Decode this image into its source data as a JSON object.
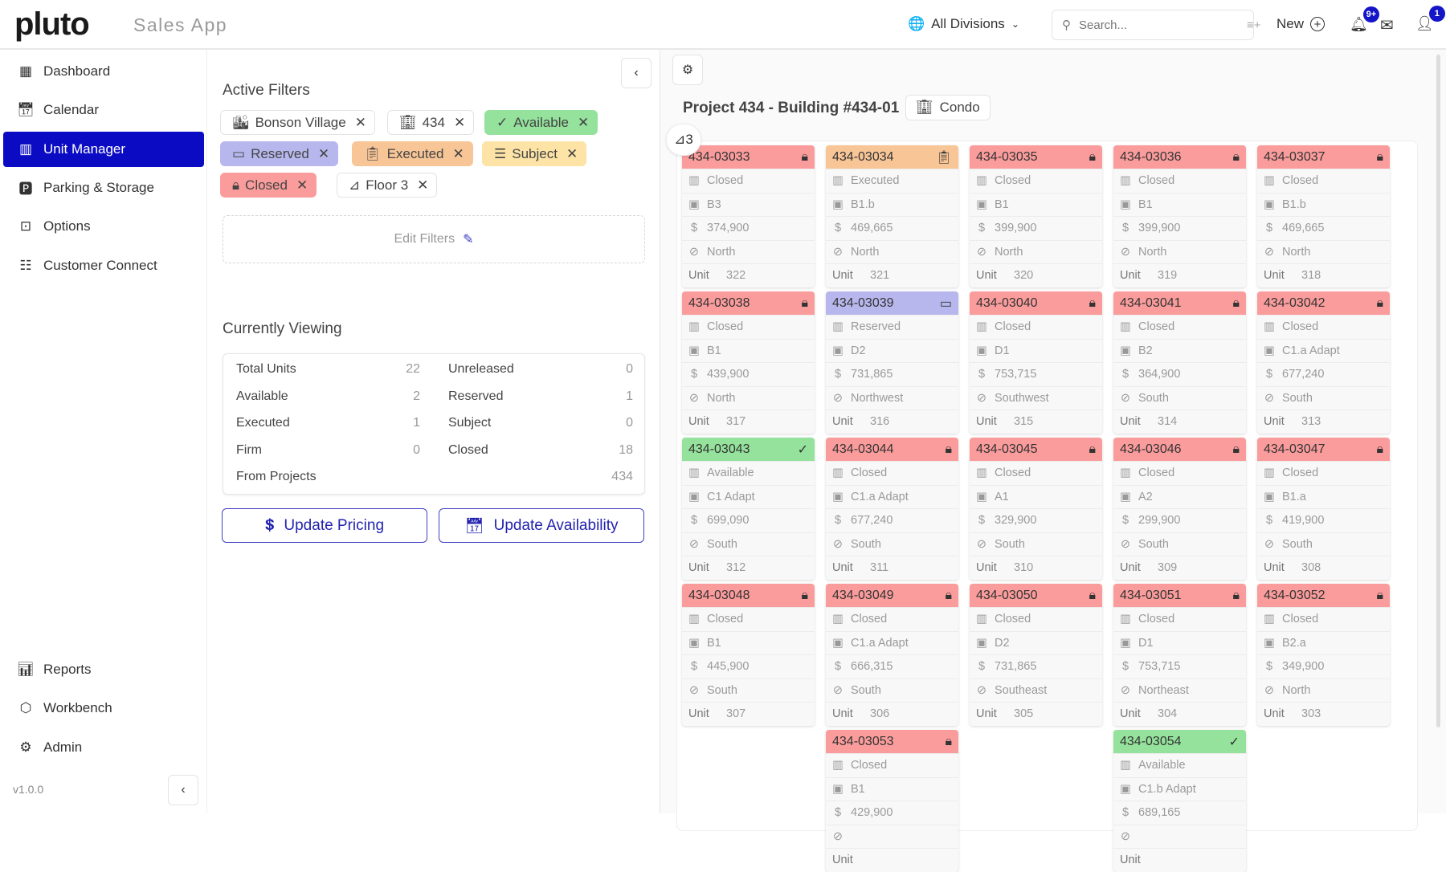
{
  "header": {
    "logo": "pluto",
    "app_name": "Sales App",
    "division": "All Divisions",
    "search_placeholder": "Search...",
    "new_label": "New",
    "notifications_badge": "9+",
    "user_badge": "1"
  },
  "sidebar": {
    "items": [
      {
        "label": "Dashboard",
        "icon": "dashboard-icon"
      },
      {
        "label": "Calendar",
        "icon": "calendar-icon"
      },
      {
        "label": "Unit Manager",
        "icon": "unit-manager-icon",
        "active": true
      },
      {
        "label": "Parking & Storage",
        "icon": "parking-icon"
      },
      {
        "label": "Options",
        "icon": "options-icon"
      },
      {
        "label": "Customer Connect",
        "icon": "customer-icon"
      }
    ],
    "bottom_items": [
      {
        "label": "Reports",
        "icon": "reports-icon"
      },
      {
        "label": "Workbench",
        "icon": "cube-icon"
      },
      {
        "label": "Admin",
        "icon": "gear-icon"
      }
    ],
    "version": "v1.0.0"
  },
  "filters": {
    "title": "Active Filters",
    "chips": [
      {
        "label": "Bonson Village",
        "icon": "buildings-icon",
        "color": "#ffffff"
      },
      {
        "label": "434",
        "icon": "building-icon",
        "color": "#ffffff"
      },
      {
        "label": "Available",
        "icon": "check-icon",
        "color": "#94e29b"
      },
      {
        "label": "Reserved",
        "icon": "card-icon",
        "color": "#b7b7ee"
      },
      {
        "label": "Executed",
        "icon": "clipboard-icon",
        "color": "#f8c596"
      },
      {
        "label": "Subject",
        "icon": "checklist-icon",
        "color": "#fde3a6"
      },
      {
        "label": "Closed",
        "icon": "lock-icon",
        "color": "#fb9c9c"
      },
      {
        "label": "Floor 3",
        "icon": "stairs-icon",
        "color": "#ffffff"
      }
    ],
    "edit_label": "Edit Filters"
  },
  "viewing": {
    "title": "Currently Viewing",
    "left": [
      {
        "label": "Total Units",
        "value": "22"
      },
      {
        "label": "Available",
        "value": "2"
      },
      {
        "label": "Executed",
        "value": "1"
      },
      {
        "label": "Firm",
        "value": "0"
      }
    ],
    "right": [
      {
        "label": "Unreleased",
        "value": "0"
      },
      {
        "label": "Reserved",
        "value": "1"
      },
      {
        "label": "Subject",
        "value": "0"
      },
      {
        "label": "Closed",
        "value": "18"
      }
    ],
    "projects_label": "From Projects",
    "projects_value": "434"
  },
  "actions": {
    "pricing": "Update Pricing",
    "availability": "Update Availability"
  },
  "main": {
    "title": "Project 434 - Building #434-01",
    "type": "Condo",
    "floor": "3",
    "unit_label": "Unit",
    "status_colors": {
      "Closed": "#fb9c9c",
      "Executed": "#f8c596",
      "Reserved": "#b7b7ee",
      "Available": "#94e29b"
    },
    "units": [
      {
        "id": "434-03033",
        "status": "Closed",
        "plan": "B3",
        "price": "374,900",
        "view": "North",
        "unit": "322"
      },
      {
        "id": "434-03034",
        "status": "Executed",
        "plan": "B1.b",
        "price": "469,665",
        "view": "North",
        "unit": "321"
      },
      {
        "id": "434-03035",
        "status": "Closed",
        "plan": "B1",
        "price": "399,900",
        "view": "North",
        "unit": "320"
      },
      {
        "id": "434-03036",
        "status": "Closed",
        "plan": "B1",
        "price": "399,900",
        "view": "North",
        "unit": "319"
      },
      {
        "id": "434-03037",
        "status": "Closed",
        "plan": "B1.b",
        "price": "469,665",
        "view": "North",
        "unit": "318"
      },
      {
        "id": "434-03038",
        "status": "Closed",
        "plan": "B1",
        "price": "439,900",
        "view": "North",
        "unit": "317"
      },
      {
        "id": "434-03039",
        "status": "Reserved",
        "plan": "D2",
        "price": "731,865",
        "view": "Northwest",
        "unit": "316"
      },
      {
        "id": "434-03040",
        "status": "Closed",
        "plan": "D1",
        "price": "753,715",
        "view": "Southwest",
        "unit": "315"
      },
      {
        "id": "434-03041",
        "status": "Closed",
        "plan": "B2",
        "price": "364,900",
        "view": "South",
        "unit": "314"
      },
      {
        "id": "434-03042",
        "status": "Closed",
        "plan": "C1.a Adapt",
        "price": "677,240",
        "view": "South",
        "unit": "313"
      },
      {
        "id": "434-03043",
        "status": "Available",
        "plan": "C1 Adapt",
        "price": "699,090",
        "view": "South",
        "unit": "312"
      },
      {
        "id": "434-03044",
        "status": "Closed",
        "plan": "C1.a Adapt",
        "price": "677,240",
        "view": "South",
        "unit": "311"
      },
      {
        "id": "434-03045",
        "status": "Closed",
        "plan": "A1",
        "price": "329,900",
        "view": "South",
        "unit": "310"
      },
      {
        "id": "434-03046",
        "status": "Closed",
        "plan": "A2",
        "price": "299,900",
        "view": "South",
        "unit": "309"
      },
      {
        "id": "434-03047",
        "status": "Closed",
        "plan": "B1.a",
        "price": "419,900",
        "view": "South",
        "unit": "308"
      },
      {
        "id": "434-03048",
        "status": "Closed",
        "plan": "B1",
        "price": "445,900",
        "view": "South",
        "unit": "307"
      },
      {
        "id": "434-03049",
        "status": "Closed",
        "plan": "C1.a Adapt",
        "price": "666,315",
        "view": "South",
        "unit": "306"
      },
      {
        "id": "434-03050",
        "status": "Closed",
        "plan": "D2",
        "price": "731,865",
        "view": "Southeast",
        "unit": "305"
      },
      {
        "id": "434-03051",
        "status": "Closed",
        "plan": "D1",
        "price": "753,715",
        "view": "Northeast",
        "unit": "304"
      },
      {
        "id": "434-03052",
        "status": "Closed",
        "plan": "B2.a",
        "price": "349,900",
        "view": "North",
        "unit": "303"
      },
      {
        "id": "434-03053",
        "status": "Closed",
        "plan": "B1",
        "price": "429,900",
        "view": "",
        "unit": "",
        "col": 1
      },
      {
        "id": "434-03054",
        "status": "Available",
        "plan": "C1.b Adapt",
        "price": "689,165",
        "view": "",
        "unit": "",
        "col": 3
      }
    ]
  }
}
